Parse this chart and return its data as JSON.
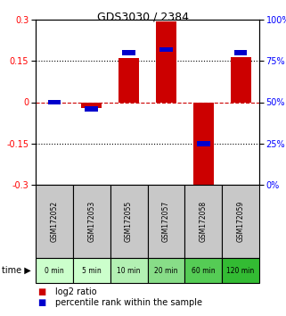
{
  "title": "GDS3030 / 2384",
  "samples": [
    "GSM172052",
    "GSM172053",
    "GSM172055",
    "GSM172057",
    "GSM172058",
    "GSM172059"
  ],
  "time_labels": [
    "0 min",
    "5 min",
    "10 min",
    "20 min",
    "60 min",
    "120 min"
  ],
  "log2_ratio": [
    0.0,
    -0.02,
    0.16,
    0.295,
    -0.32,
    0.165
  ],
  "percentile_rank": [
    50,
    46,
    80,
    82,
    25,
    80
  ],
  "ylim_left": [
    -0.3,
    0.3
  ],
  "ylim_right": [
    0,
    100
  ],
  "yticks_left": [
    -0.3,
    -0.15,
    0,
    0.15,
    0.3
  ],
  "yticks_right": [
    0,
    25,
    50,
    75,
    100
  ],
  "bar_color": "#cc0000",
  "blue_color": "#0000cc",
  "gsm_bg_color": "#c8c8c8",
  "time_bg_colors": [
    "#ccffcc",
    "#ccffcc",
    "#b3f0b3",
    "#88dd88",
    "#55cc55",
    "#33bb33"
  ],
  "bar_width": 0.55,
  "blue_bar_width": 0.35
}
